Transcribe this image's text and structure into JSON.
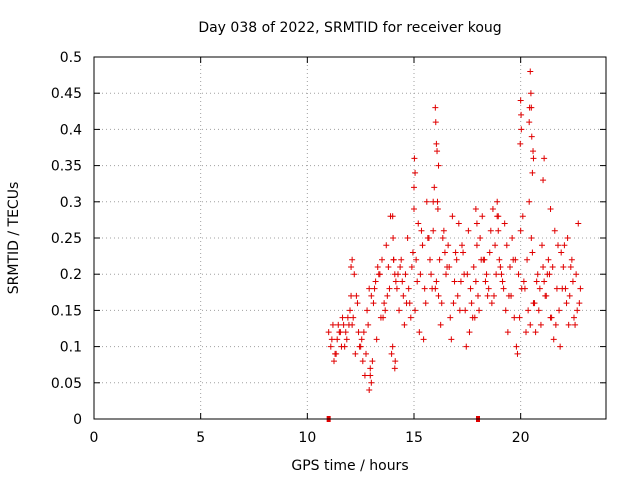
{
  "chart_data": {
    "type": "scatter",
    "title": "Day 038 of 2022, SRMTID for receiver koug",
    "xlabel": "GPS time / hours",
    "ylabel": "SRMTID / TECUs",
    "xlim": [
      0,
      24
    ],
    "ylim": [
      0,
      0.5
    ],
    "x_ticks": [
      0,
      5,
      10,
      15,
      20
    ],
    "x_tick_labels": [
      "0",
      "5",
      "10",
      "15",
      "20"
    ],
    "y_ticks": [
      0,
      0.05,
      0.1,
      0.15,
      0.2,
      0.25,
      0.3,
      0.35,
      0.4,
      0.45,
      0.5
    ],
    "y_tick_labels": [
      "0",
      "0.05",
      "0.1",
      "0.15",
      "0.2",
      "0.25",
      "0.3",
      "0.35",
      "0.4",
      "0.45",
      "0.5"
    ],
    "grid": true,
    "marker": "+",
    "color": "#e00000",
    "series": [
      {
        "name": "SRMTID",
        "x": [
          11.0,
          11.1,
          11.2,
          11.3,
          11.4,
          11.5,
          11.6,
          11.7,
          11.8,
          11.9,
          12.0,
          12.1,
          12.2,
          12.3,
          12.4,
          12.5,
          12.6,
          12.7,
          12.8,
          12.9,
          13.0,
          13.1,
          13.2,
          13.3,
          13.4,
          13.5,
          13.6,
          13.7,
          13.8,
          13.9,
          14.0,
          14.1,
          14.2,
          14.3,
          14.4,
          14.5,
          14.6,
          14.7,
          14.8,
          14.9,
          15.0,
          15.1,
          15.2,
          15.3,
          15.4,
          15.5,
          15.6,
          15.7,
          15.8,
          15.9,
          16.0,
          16.1,
          16.2,
          16.3,
          16.4,
          16.5,
          16.6,
          16.7,
          16.8,
          16.9,
          17.0,
          17.1,
          17.2,
          17.3,
          17.4,
          17.5,
          17.6,
          17.7,
          17.8,
          17.9,
          18.0,
          18.1,
          18.2,
          18.3,
          18.4,
          18.5,
          18.6,
          18.7,
          18.8,
          18.9,
          19.0,
          19.1,
          19.2,
          19.3,
          19.4,
          19.5,
          19.6,
          19.7,
          19.8,
          19.9,
          20.0,
          20.1,
          20.2,
          20.3,
          20.4,
          20.5,
          20.6,
          20.7,
          20.8,
          20.9,
          21.0,
          21.1,
          21.2,
          21.3,
          21.4,
          21.5,
          21.6,
          21.7,
          21.8,
          21.9,
          22.0,
          22.1,
          22.2,
          22.3,
          22.4,
          22.5,
          22.6,
          22.7,
          22.8,
          11.15,
          11.35,
          11.55,
          11.75,
          11.95,
          12.15,
          12.35,
          12.55,
          12.75,
          12.95,
          13.15,
          13.35,
          13.55,
          13.75,
          13.95,
          14.15,
          14.35,
          14.55,
          14.75,
          14.95,
          15.15,
          15.35,
          15.55,
          15.75,
          15.95,
          16.15,
          16.35,
          16.55,
          16.75,
          16.95,
          17.15,
          17.35,
          17.55,
          17.75,
          17.95,
          18.15,
          18.35,
          18.55,
          18.75,
          18.95,
          19.15,
          19.35,
          19.55,
          19.75,
          19.95,
          20.15,
          20.35,
          20.55,
          20.75,
          20.95,
          21.15,
          21.35,
          21.55,
          21.75,
          21.95,
          22.15,
          22.35,
          22.55,
          22.75,
          11.25,
          11.65,
          12.05,
          12.45,
          12.85,
          13.25,
          13.65,
          14.05,
          14.45,
          14.85,
          15.25,
          15.65,
          16.05,
          16.45,
          16.85,
          17.25,
          17.65,
          18.05,
          18.45,
          18.85,
          19.25,
          19.65,
          20.05,
          20.45,
          20.85,
          21.25,
          21.65,
          22.05,
          22.45,
          11.45,
          11.85,
          12.25,
          12.65,
          13.05,
          13.45,
          13.85,
          14.25,
          14.65,
          15.05,
          15.45,
          15.85,
          16.25,
          16.65,
          17.05,
          17.45,
          17.85,
          18.25,
          18.65,
          19.05,
          19.45,
          19.85,
          20.25,
          20.65,
          21.05,
          21.45,
          21.85,
          22.25,
          22.65,
          14.0,
          14.02,
          14.04,
          15.0,
          15.02,
          15.05,
          16.0,
          16.02,
          16.05,
          16.08,
          20.0,
          20.03,
          20.45,
          20.48,
          20.5,
          20.52,
          20.55,
          21.05,
          21.1,
          15.9,
          16.12,
          16.15,
          19.98,
          20.02,
          20.58,
          20.6,
          18.9,
          18.95,
          17.9,
          17.95,
          12.9,
          12.95,
          13.0,
          14.1,
          14.12,
          12.05,
          12.1,
          20.4,
          20.42,
          21.4
        ],
        "y": [
          0.12,
          0.1,
          0.13,
          0.09,
          0.11,
          0.12,
          0.1,
          0.13,
          0.12,
          0.14,
          0.15,
          0.13,
          0.2,
          0.17,
          0.12,
          0.1,
          0.08,
          0.06,
          0.15,
          0.18,
          0.17,
          0.16,
          0.19,
          0.21,
          0.2,
          0.22,
          0.16,
          0.24,
          0.21,
          0.28,
          0.1,
          0.2,
          0.18,
          0.15,
          0.22,
          0.17,
          0.2,
          0.25,
          0.16,
          0.21,
          0.29,
          0.22,
          0.27,
          0.2,
          0.24,
          0.18,
          0.3,
          0.25,
          0.2,
          0.26,
          0.18,
          0.3,
          0.22,
          0.16,
          0.26,
          0.2,
          0.24,
          0.14,
          0.28,
          0.19,
          0.22,
          0.27,
          0.19,
          0.23,
          0.15,
          0.2,
          0.12,
          0.16,
          0.21,
          0.19,
          0.17,
          0.25,
          0.28,
          0.22,
          0.2,
          0.18,
          0.26,
          0.29,
          0.24,
          0.28,
          0.22,
          0.2,
          0.18,
          0.15,
          0.12,
          0.21,
          0.25,
          0.14,
          0.1,
          0.2,
          0.26,
          0.28,
          0.18,
          0.22,
          0.3,
          0.25,
          0.16,
          0.12,
          0.2,
          0.18,
          0.24,
          0.19,
          0.17,
          0.22,
          0.14,
          0.21,
          0.26,
          0.18,
          0.15,
          0.23,
          0.21,
          0.18,
          0.25,
          0.17,
          0.22,
          0.14,
          0.2,
          0.27,
          0.18,
          0.11,
          0.09,
          0.12,
          0.1,
          0.13,
          0.14,
          0.16,
          0.11,
          0.09,
          0.07,
          0.18,
          0.2,
          0.14,
          0.17,
          0.09,
          0.19,
          0.21,
          0.13,
          0.18,
          0.23,
          0.19,
          0.26,
          0.16,
          0.22,
          0.32,
          0.17,
          0.25,
          0.21,
          0.11,
          0.23,
          0.15,
          0.2,
          0.26,
          0.14,
          0.24,
          0.22,
          0.19,
          0.23,
          0.17,
          0.26,
          0.19,
          0.24,
          0.17,
          0.22,
          0.14,
          0.19,
          0.15,
          0.23,
          0.19,
          0.13,
          0.17,
          0.2,
          0.11,
          0.24,
          0.18,
          0.16,
          0.21,
          0.13,
          0.16,
          0.08,
          0.14,
          0.17,
          0.1,
          0.13,
          0.11,
          0.15,
          0.22,
          0.19,
          0.14,
          0.12,
          0.25,
          0.19,
          0.23,
          0.16,
          0.24,
          0.18,
          0.15,
          0.17,
          0.2,
          0.27,
          0.22,
          0.18,
          0.13,
          0.15,
          0.2,
          0.13,
          0.24,
          0.19,
          0.13,
          0.11,
          0.09,
          0.12,
          0.08,
          0.14,
          0.18,
          0.2,
          0.16,
          0.15,
          0.11,
          0.18,
          0.13,
          0.21,
          0.17,
          0.1,
          0.14,
          0.22,
          0.16,
          0.21,
          0.17,
          0.09,
          0.12,
          0.16,
          0.21,
          0.14,
          0.1,
          0.13,
          0.15,
          0.28,
          0.25,
          0.22,
          0.32,
          0.36,
          0.34,
          0.43,
          0.41,
          0.38,
          0.37,
          0.44,
          0.4,
          0.48,
          0.45,
          0.43,
          0.39,
          0.34,
          0.33,
          0.36,
          0.3,
          0.29,
          0.35,
          0.38,
          0.42,
          0.37,
          0.36,
          0.3,
          0.28,
          0.29,
          0.27,
          0.04,
          0.06,
          0.05,
          0.07,
          0.08,
          0.21,
          0.22,
          0.41,
          0.43,
          0.29
        ]
      }
    ],
    "markers_on_axis": [
      {
        "x": 11.0,
        "y": 0
      },
      {
        "x": 18.0,
        "y": 0
      }
    ]
  }
}
